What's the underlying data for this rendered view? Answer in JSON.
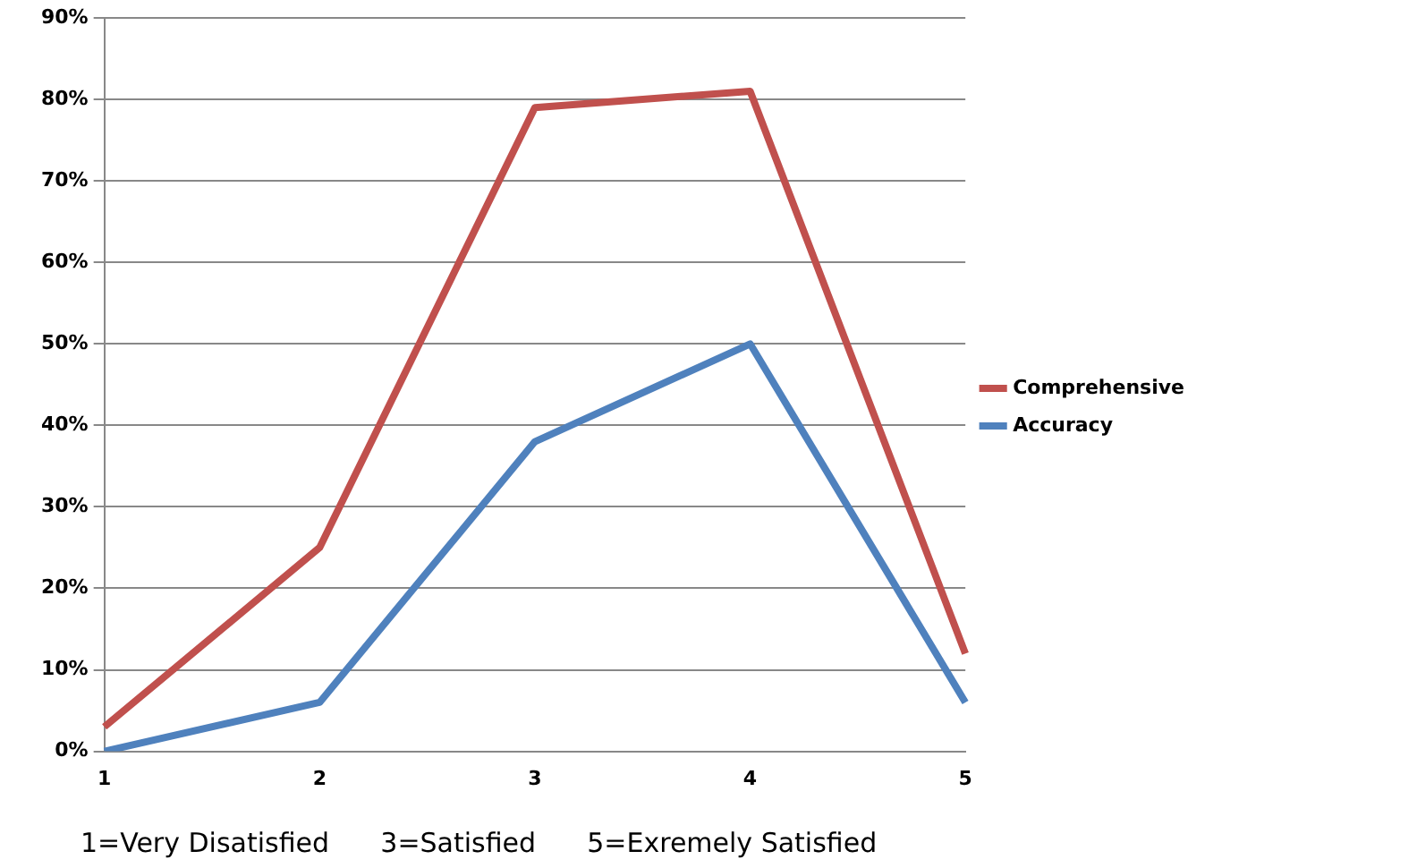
{
  "chart_data": {
    "type": "line",
    "categories": [
      "1",
      "2",
      "3",
      "4",
      "5"
    ],
    "series": [
      {
        "name": "Comprehensive",
        "color": "#c0504d",
        "values": [
          3,
          25,
          79,
          81,
          12
        ]
      },
      {
        "name": "Accuracy",
        "color": "#4f81bd",
        "values": [
          0,
          6,
          38,
          50,
          6
        ]
      }
    ],
    "ylim": [
      0,
      90
    ],
    "yticks": [
      {
        "value": 0,
        "label": "0%"
      },
      {
        "value": 10,
        "label": "10%"
      },
      {
        "value": 20,
        "label": "20%"
      },
      {
        "value": 30,
        "label": "30%"
      },
      {
        "value": 40,
        "label": "40%"
      },
      {
        "value": 50,
        "label": "50%"
      },
      {
        "value": 60,
        "label": "60%"
      },
      {
        "value": 70,
        "label": "70%"
      },
      {
        "value": 80,
        "label": "80%"
      },
      {
        "value": 90,
        "label": "90%"
      }
    ],
    "grid": "y",
    "legend": "right",
    "marker": "none",
    "line_style": "solid",
    "annotations": [
      "1=Very Disatisfied      3=Satisfied      5=Exremely Satisfied"
    ]
  }
}
